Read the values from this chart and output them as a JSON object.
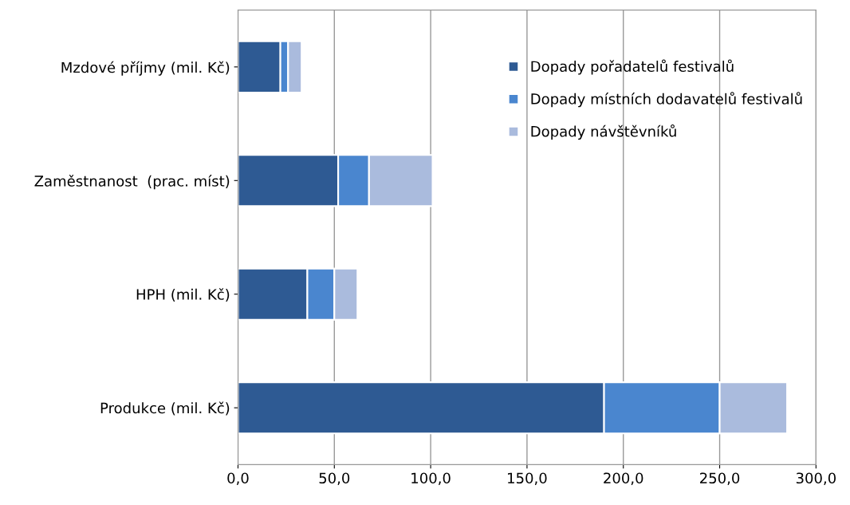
{
  "chart_data": {
    "type": "bar",
    "orientation": "horizontal",
    "stacked": true,
    "categories": [
      "Mzdové příjmy (mil. Kč)",
      "Zaměstnanost  (prac. míst)",
      "HPH (mil. Kč)",
      "Produkce (mil. Kč)"
    ],
    "series": [
      {
        "name": "Dopady pořadatelů festivalů",
        "color": "#2e5a93",
        "values": [
          22,
          52,
          36,
          190
        ]
      },
      {
        "name": "Dopady místních dodavatelů festivalů",
        "color": "#4a86cf",
        "values": [
          4,
          16,
          14,
          60
        ]
      },
      {
        "name": "Dopady návštěvníků",
        "color": "#aabbdd",
        "values": [
          7,
          33,
          12,
          35
        ]
      }
    ],
    "xlim": [
      0,
      300
    ],
    "xticks": [
      {
        "value": 0,
        "label": "0,0"
      },
      {
        "value": 50,
        "label": "50,0"
      },
      {
        "value": 100,
        "label": "100,0"
      },
      {
        "value": 150,
        "label": "150,0"
      },
      {
        "value": 200,
        "label": "200,0"
      },
      {
        "value": 250,
        "label": "250,0"
      },
      {
        "value": 300,
        "label": "300,0"
      }
    ],
    "grid": "x",
    "legend": "top right"
  }
}
